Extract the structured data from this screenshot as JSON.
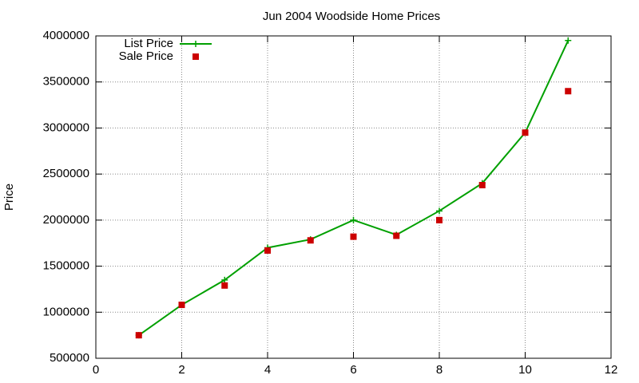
{
  "chart_data": {
    "type": "line",
    "title": "Jun 2004 Woodside Home Prices",
    "y_label": "Price",
    "x": [
      1,
      2,
      3,
      4,
      5,
      6,
      7,
      8,
      9,
      10,
      11
    ],
    "series": [
      {
        "name": "List Price",
        "color": "#00a000",
        "style": "linespoints",
        "values": [
          750000,
          1080000,
          1350000,
          1700000,
          1790000,
          2000000,
          1840000,
          2100000,
          2400000,
          2950000,
          3950000
        ]
      },
      {
        "name": "Sale Price",
        "color": "#cc0000",
        "style": "points",
        "values": [
          750000,
          1080000,
          1290000,
          1670000,
          1780000,
          1820000,
          1830000,
          2000000,
          2380000,
          2950000,
          3400000
        ]
      }
    ],
    "xlim": [
      0,
      12
    ],
    "xticks": [
      0,
      2,
      4,
      6,
      8,
      10,
      12
    ],
    "ylim": [
      500000,
      4000000
    ],
    "yticks": [
      500000,
      1000000,
      1500000,
      2000000,
      2500000,
      3000000,
      3500000,
      4000000
    ],
    "grid": true,
    "legend": "top-left"
  }
}
